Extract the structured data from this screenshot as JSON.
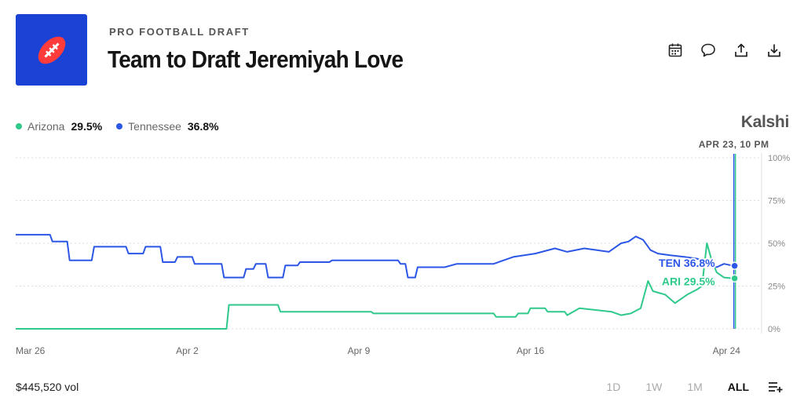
{
  "header": {
    "category": "PRO FOOTBALL DRAFT",
    "title": "Team to Draft Jeremiyah Love"
  },
  "toolbar": {
    "icons": [
      "calendar-icon",
      "comment-icon",
      "share-icon",
      "download-icon"
    ]
  },
  "brand": "Kalshi",
  "legend": [
    {
      "name": "Arizona",
      "value": "29.5%",
      "color": "#2ec98b"
    },
    {
      "name": "Tennessee",
      "value": "36.8%",
      "color": "#2b56e6"
    }
  ],
  "hover": {
    "label": "APR 23, 10 PM",
    "ten_label": "TEN 36.8%",
    "ari_label": "ARI 29.5%"
  },
  "footer": {
    "volume": "$445,520 vol",
    "ranges": [
      "1D",
      "1W",
      "1M",
      "ALL"
    ],
    "active_range": "ALL"
  },
  "chart_data": {
    "type": "line",
    "x_ticks": [
      "Mar 26",
      "Apr 2",
      "Apr 9",
      "Apr 16",
      "Apr 24"
    ],
    "y_ticks": [
      "100%",
      "75%",
      "50%",
      "25%",
      "0%"
    ],
    "ylim": [
      0,
      100
    ],
    "x_unit": "days since Mar 26",
    "xlim": [
      0,
      29.6
    ],
    "grid": true,
    "series": [
      {
        "name": "Tennessee",
        "color": "#2b56e6",
        "points": [
          [
            0,
            55
          ],
          [
            1.4,
            55
          ],
          [
            1.5,
            51
          ],
          [
            2.1,
            51
          ],
          [
            2.2,
            40
          ],
          [
            3.1,
            40
          ],
          [
            3.2,
            48
          ],
          [
            4.5,
            48
          ],
          [
            4.6,
            44
          ],
          [
            5.2,
            44
          ],
          [
            5.3,
            48
          ],
          [
            5.9,
            48
          ],
          [
            6.0,
            39
          ],
          [
            6.5,
            39
          ],
          [
            6.6,
            42
          ],
          [
            7.2,
            42
          ],
          [
            7.3,
            38
          ],
          [
            8.4,
            38
          ],
          [
            8.5,
            30
          ],
          [
            9.3,
            30
          ],
          [
            9.4,
            35
          ],
          [
            9.7,
            35
          ],
          [
            9.8,
            38
          ],
          [
            10.2,
            38
          ],
          [
            10.3,
            30
          ],
          [
            10.9,
            30
          ],
          [
            11.0,
            37
          ],
          [
            11.5,
            37
          ],
          [
            11.6,
            39
          ],
          [
            12.8,
            39
          ],
          [
            12.9,
            40
          ],
          [
            15.6,
            40
          ],
          [
            15.7,
            38
          ],
          [
            15.9,
            38
          ],
          [
            16.0,
            30
          ],
          [
            16.3,
            30
          ],
          [
            16.4,
            36
          ],
          [
            17.5,
            36
          ],
          [
            18.0,
            38
          ],
          [
            19.5,
            38
          ],
          [
            20.3,
            42
          ],
          [
            21.2,
            44
          ],
          [
            22.0,
            47
          ],
          [
            22.5,
            45
          ],
          [
            23.2,
            47
          ],
          [
            24.2,
            45
          ],
          [
            24.7,
            50
          ],
          [
            25.0,
            51
          ],
          [
            25.3,
            54
          ],
          [
            25.6,
            52
          ],
          [
            25.9,
            46
          ],
          [
            26.2,
            44
          ],
          [
            26.7,
            43
          ],
          [
            27.3,
            42
          ],
          [
            27.8,
            41
          ],
          [
            28.3,
            38
          ],
          [
            28.6,
            36
          ],
          [
            28.9,
            38
          ],
          [
            29.3,
            36.8
          ]
        ]
      },
      {
        "name": "Arizona",
        "color": "#2ec98b",
        "points": [
          [
            0,
            0
          ],
          [
            8.6,
            0
          ],
          [
            8.7,
            14
          ],
          [
            10.7,
            14
          ],
          [
            10.8,
            10
          ],
          [
            14.5,
            10
          ],
          [
            14.6,
            9
          ],
          [
            19.5,
            9
          ],
          [
            19.6,
            7
          ],
          [
            20.4,
            7
          ],
          [
            20.5,
            9
          ],
          [
            20.9,
            9
          ],
          [
            21.0,
            12
          ],
          [
            21.6,
            12
          ],
          [
            21.7,
            10
          ],
          [
            22.4,
            10
          ],
          [
            22.5,
            8
          ],
          [
            23.0,
            12
          ],
          [
            24.3,
            10
          ],
          [
            24.7,
            8
          ],
          [
            25.1,
            9
          ],
          [
            25.5,
            12
          ],
          [
            25.8,
            28
          ],
          [
            26.0,
            22
          ],
          [
            26.5,
            20
          ],
          [
            26.9,
            15
          ],
          [
            27.4,
            20
          ],
          [
            27.8,
            23
          ],
          [
            28.0,
            25
          ],
          [
            28.2,
            50
          ],
          [
            28.4,
            40
          ],
          [
            28.6,
            33
          ],
          [
            28.9,
            30
          ],
          [
            29.3,
            29.5
          ]
        ]
      }
    ]
  }
}
